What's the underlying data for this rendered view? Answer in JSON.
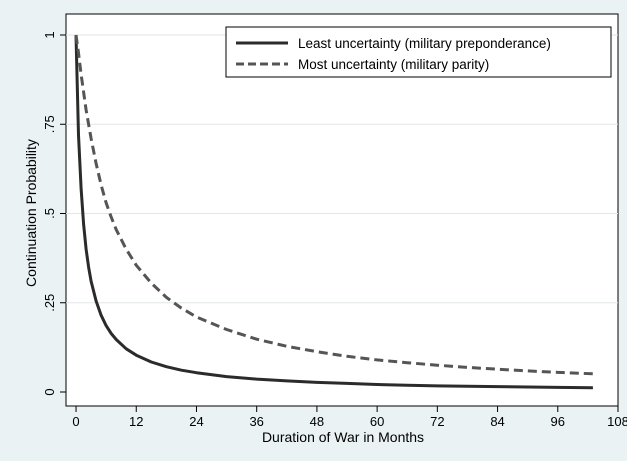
{
  "chart_data": {
    "type": "line",
    "title": "",
    "xlabel": "Duration of War in Months",
    "ylabel": "Continuation Probability",
    "xlim": [
      -2,
      108
    ],
    "ylim": [
      0,
      1
    ],
    "x_ticks": [
      0,
      12,
      24,
      36,
      48,
      60,
      72,
      84,
      96,
      108
    ],
    "x_tick_labels": [
      "0",
      "12",
      "24",
      "36",
      "48",
      "60",
      "72",
      "84",
      "96",
      "108"
    ],
    "y_ticks": [
      0,
      0.25,
      0.5,
      0.75,
      1
    ],
    "y_tick_labels": [
      "0",
      ".25",
      ".5",
      ".75",
      "1"
    ],
    "grid": "horizontal",
    "legend_position": "top-right",
    "series": [
      {
        "name": "Least uncertainty (military preponderance)",
        "style": "solid",
        "color": "#2b2b2b",
        "x": [
          0,
          0.5,
          1,
          1.5,
          2,
          2.5,
          3,
          4,
          5,
          6,
          7,
          8,
          10,
          12,
          15,
          18,
          21,
          24,
          30,
          36,
          42,
          48,
          54,
          60,
          66,
          72,
          78,
          84,
          90,
          96,
          103
        ],
        "y": [
          1,
          0.72,
          0.57,
          0.47,
          0.4,
          0.35,
          0.31,
          0.255,
          0.215,
          0.186,
          0.164,
          0.147,
          0.121,
          0.103,
          0.084,
          0.071,
          0.061,
          0.054,
          0.043,
          0.036,
          0.031,
          0.027,
          0.024,
          0.021,
          0.019,
          0.017,
          0.016,
          0.015,
          0.014,
          0.013,
          0.012
        ]
      },
      {
        "name": "Most uncertainty (military parity)",
        "style": "dashed",
        "color": "#555555",
        "x": [
          0,
          0.5,
          1,
          1.5,
          2,
          3,
          4,
          5,
          6,
          7,
          8,
          10,
          12,
          15,
          18,
          21,
          24,
          30,
          36,
          42,
          48,
          54,
          60,
          66,
          72,
          78,
          84,
          90,
          96,
          103
        ],
        "y": [
          1,
          0.95,
          0.89,
          0.84,
          0.79,
          0.71,
          0.64,
          0.58,
          0.53,
          0.49,
          0.455,
          0.4,
          0.355,
          0.305,
          0.265,
          0.235,
          0.21,
          0.175,
          0.148,
          0.128,
          0.113,
          0.1,
          0.09,
          0.082,
          0.075,
          0.069,
          0.064,
          0.059,
          0.055,
          0.051
        ]
      }
    ]
  }
}
